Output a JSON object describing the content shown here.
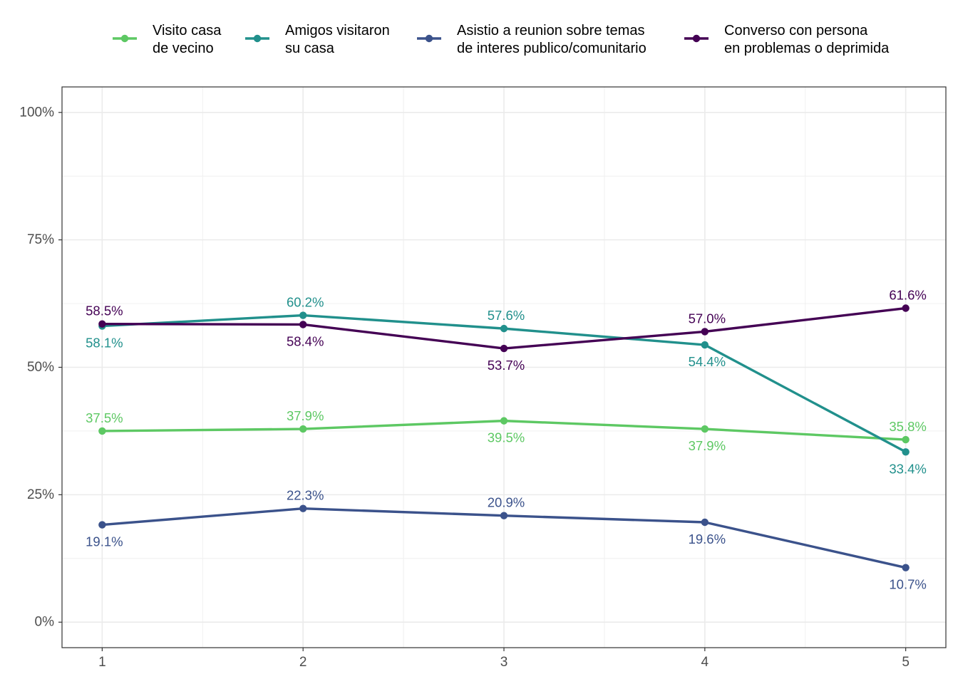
{
  "chart_data": {
    "type": "line",
    "x": [
      1,
      2,
      3,
      4,
      5
    ],
    "xlim": [
      0.8,
      5.2
    ],
    "ylim": [
      -0.05,
      1.05
    ],
    "y_ticks": [
      0,
      0.25,
      0.5,
      0.75,
      1.0
    ],
    "y_tick_labels": [
      "0%",
      "25%",
      "50%",
      "75%",
      "100%"
    ],
    "x_tick_labels": [
      "1",
      "2",
      "3",
      "4",
      "5"
    ],
    "grid": true,
    "legend_position": "top",
    "series": [
      {
        "name_lines": [
          "Visito casa",
          "de vecino"
        ],
        "color": "#5DC863",
        "values": [
          0.375,
          0.379,
          0.395,
          0.379,
          0.358
        ],
        "labels": [
          "37.5%",
          "37.9%",
          "39.5%",
          "37.9%",
          "35.8%"
        ],
        "label_side": [
          "above",
          "above",
          "below",
          "below",
          "above"
        ]
      },
      {
        "name_lines": [
          "Amigos visitaron",
          "su casa"
        ],
        "color": "#21908C",
        "values": [
          0.581,
          0.602,
          0.576,
          0.544,
          0.334
        ],
        "labels": [
          "58.1%",
          "60.2%",
          "57.6%",
          "54.4%",
          "33.4%"
        ],
        "label_side": [
          "below",
          "above",
          "above",
          "below",
          "below"
        ]
      },
      {
        "name_lines": [
          "Asistio a reunion sobre temas",
          "de interes publico/comunitario"
        ],
        "color": "#3B528B",
        "values": [
          0.191,
          0.223,
          0.209,
          0.196,
          0.107
        ],
        "labels": [
          "19.1%",
          "22.3%",
          "20.9%",
          "19.6%",
          "10.7%"
        ],
        "label_side": [
          "below",
          "above",
          "above",
          "below",
          "below"
        ]
      },
      {
        "name_lines": [
          "Converso con persona",
          "en problemas o deprimida"
        ],
        "color": "#440154",
        "values": [
          0.585,
          0.584,
          0.537,
          0.57,
          0.616
        ],
        "labels": [
          "58.5%",
          "58.4%",
          "53.7%",
          "57.0%",
          "61.6%"
        ],
        "label_side": [
          "above",
          "below",
          "below",
          "above",
          "above"
        ]
      }
    ]
  }
}
